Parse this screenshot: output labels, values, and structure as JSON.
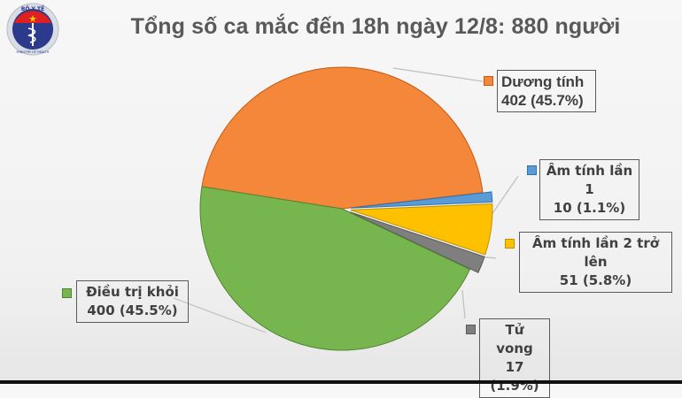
{
  "title": "Tổng số ca mắc đến 18h ngày 12/8: 880 người",
  "logo": {
    "top_text": "BỘ Y TẾ",
    "bottom_text": "MINISTRY OF HEALTH",
    "icon": "caduceus-icon"
  },
  "chart_data": {
    "type": "pie",
    "title": "Tổng số ca mắc đến 18h ngày 12/8: 880 người",
    "total": 880,
    "categories": [
      "Dương tính",
      "Âm tính lần 1",
      "Âm tính lần 2 trở lên",
      "Tử vong",
      "Điều trị khỏi"
    ],
    "values": [
      402,
      10,
      51,
      17,
      400
    ],
    "percentages": [
      45.7,
      1.1,
      5.8,
      1.9,
      45.5
    ],
    "colors": [
      "#f5873a",
      "#5b9bd5",
      "#ffc000",
      "#7f7f7f",
      "#77b64f"
    ],
    "stroke_colors": [
      "#c55a11",
      "#2e75b6",
      "#bf9000",
      "#595959",
      "#548235"
    ],
    "legend": "data labels with color swatches",
    "start_angle_deg": 189,
    "direction": "clockwise",
    "exploded": [
      0,
      1,
      1,
      1,
      0
    ]
  },
  "labels": [
    {
      "name": "Dương tính",
      "value_text": "402 (45.7%)"
    },
    {
      "name": "Âm tính lần 1",
      "value_text": "10 (1.1%)"
    },
    {
      "name": "Âm tính lần 2 trở lên",
      "value_text": "51 (5.8%)"
    },
    {
      "name": "Tử vong",
      "value_text": "17 (1.9%)"
    },
    {
      "name": "Điều trị khỏi",
      "value_text": "400 (45.5%)"
    }
  ]
}
